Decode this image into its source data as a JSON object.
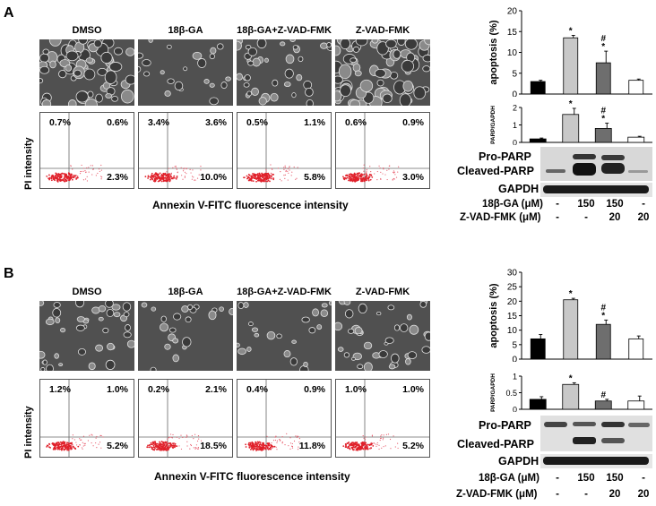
{
  "conditions": [
    "DMSO",
    "18β-GA",
    "18β-GA+Z-VAD-FMK",
    "Z-VAD-FMK"
  ],
  "common": {
    "ylabel_flow": "PI intensity",
    "xlabel_flow": "Annexin V-FITC fluorescence intensity",
    "blot_labels": {
      "pro": "Pro-PARP",
      "cleaved": "Cleaved-PARP",
      "gapdh": "GAPDH"
    },
    "treatments": [
      {
        "label": "18β-GA (μM)",
        "values": [
          "-",
          "150",
          "150",
          "-"
        ]
      },
      {
        "label": "Z-VAD-FMK (μM)",
        "values": [
          "-",
          "-",
          "20",
          "20"
        ]
      }
    ],
    "bar_colors": [
      "#000000",
      "#c8c8c8",
      "#6e6e6e",
      "#ffffff"
    ]
  },
  "panels": [
    {
      "letter": "A",
      "flow_quadrants": [
        {
          "ul": "0.7%",
          "ur": "0.6%",
          "lr": "2.3%"
        },
        {
          "ul": "3.4%",
          "ur": "3.6%",
          "lr": "10.0%"
        },
        {
          "ul": "0.5%",
          "ur": "1.1%",
          "lr": "5.8%"
        },
        {
          "ul": "0.6%",
          "ur": "0.9%",
          "lr": "3.0%"
        }
      ]
    },
    {
      "letter": "B",
      "flow_quadrants": [
        {
          "ul": "1.2%",
          "ur": "1.0%",
          "lr": "5.2%"
        },
        {
          "ul": "0.2%",
          "ur": "2.1%",
          "lr": "18.5%"
        },
        {
          "ul": "0.4%",
          "ur": "0.9%",
          "lr": "11.8%"
        },
        {
          "ul": "1.0%",
          "ur": "1.0%",
          "lr": "5.2%"
        }
      ]
    }
  ],
  "chart_data": [
    {
      "type": "bar",
      "panel": "A",
      "ylabel": "apoptosis (%)",
      "categories": [
        "DMSO",
        "18β-GA",
        "18β-GA+Z-VAD-FMK",
        "Z-VAD-FMK"
      ],
      "values": [
        3.0,
        13.5,
        7.5,
        3.3
      ],
      "errors": [
        0.3,
        0.6,
        2.8,
        0.3
      ],
      "ylim": [
        0,
        20
      ],
      "yticks": [
        0,
        5,
        10,
        15,
        20
      ],
      "annotations": [
        "",
        "*",
        "#*",
        ""
      ]
    },
    {
      "type": "bar",
      "panel": "A",
      "ylabel": "PARP/GAPDH",
      "categories": [
        "DMSO",
        "18β-GA",
        "18β-GA+Z-VAD-FMK",
        "Z-VAD-FMK"
      ],
      "values": [
        0.2,
        1.6,
        0.8,
        0.3
      ],
      "errors": [
        0.05,
        0.35,
        0.3,
        0.05
      ],
      "ylim": [
        0,
        2
      ],
      "yticks": [
        0,
        1,
        2
      ],
      "annotations": [
        "",
        "*",
        "#*",
        ""
      ]
    },
    {
      "type": "bar",
      "panel": "B",
      "ylabel": "apoptosis (%)",
      "categories": [
        "DMSO",
        "18β-GA",
        "18β-GA+Z-VAD-FMK",
        "Z-VAD-FMK"
      ],
      "values": [
        7.0,
        20.5,
        12.0,
        7.0
      ],
      "errors": [
        1.5,
        0.5,
        1.5,
        1.0
      ],
      "ylim": [
        0,
        30
      ],
      "yticks": [
        0,
        5,
        10,
        15,
        20,
        25,
        30
      ],
      "annotations": [
        "",
        "*",
        "#*",
        ""
      ]
    },
    {
      "type": "bar",
      "panel": "B",
      "ylabel": "PARP/GAPDH",
      "categories": [
        "DMSO",
        "18β-GA",
        "18β-GA+Z-VAD-FMK",
        "Z-VAD-FMK"
      ],
      "values": [
        0.3,
        0.75,
        0.25,
        0.25
      ],
      "errors": [
        0.08,
        0.05,
        0.05,
        0.15
      ],
      "ylim": [
        0,
        1.0
      ],
      "yticks": [
        0,
        0.5,
        1.0
      ],
      "annotations": [
        "",
        "*",
        "#",
        ""
      ]
    }
  ]
}
